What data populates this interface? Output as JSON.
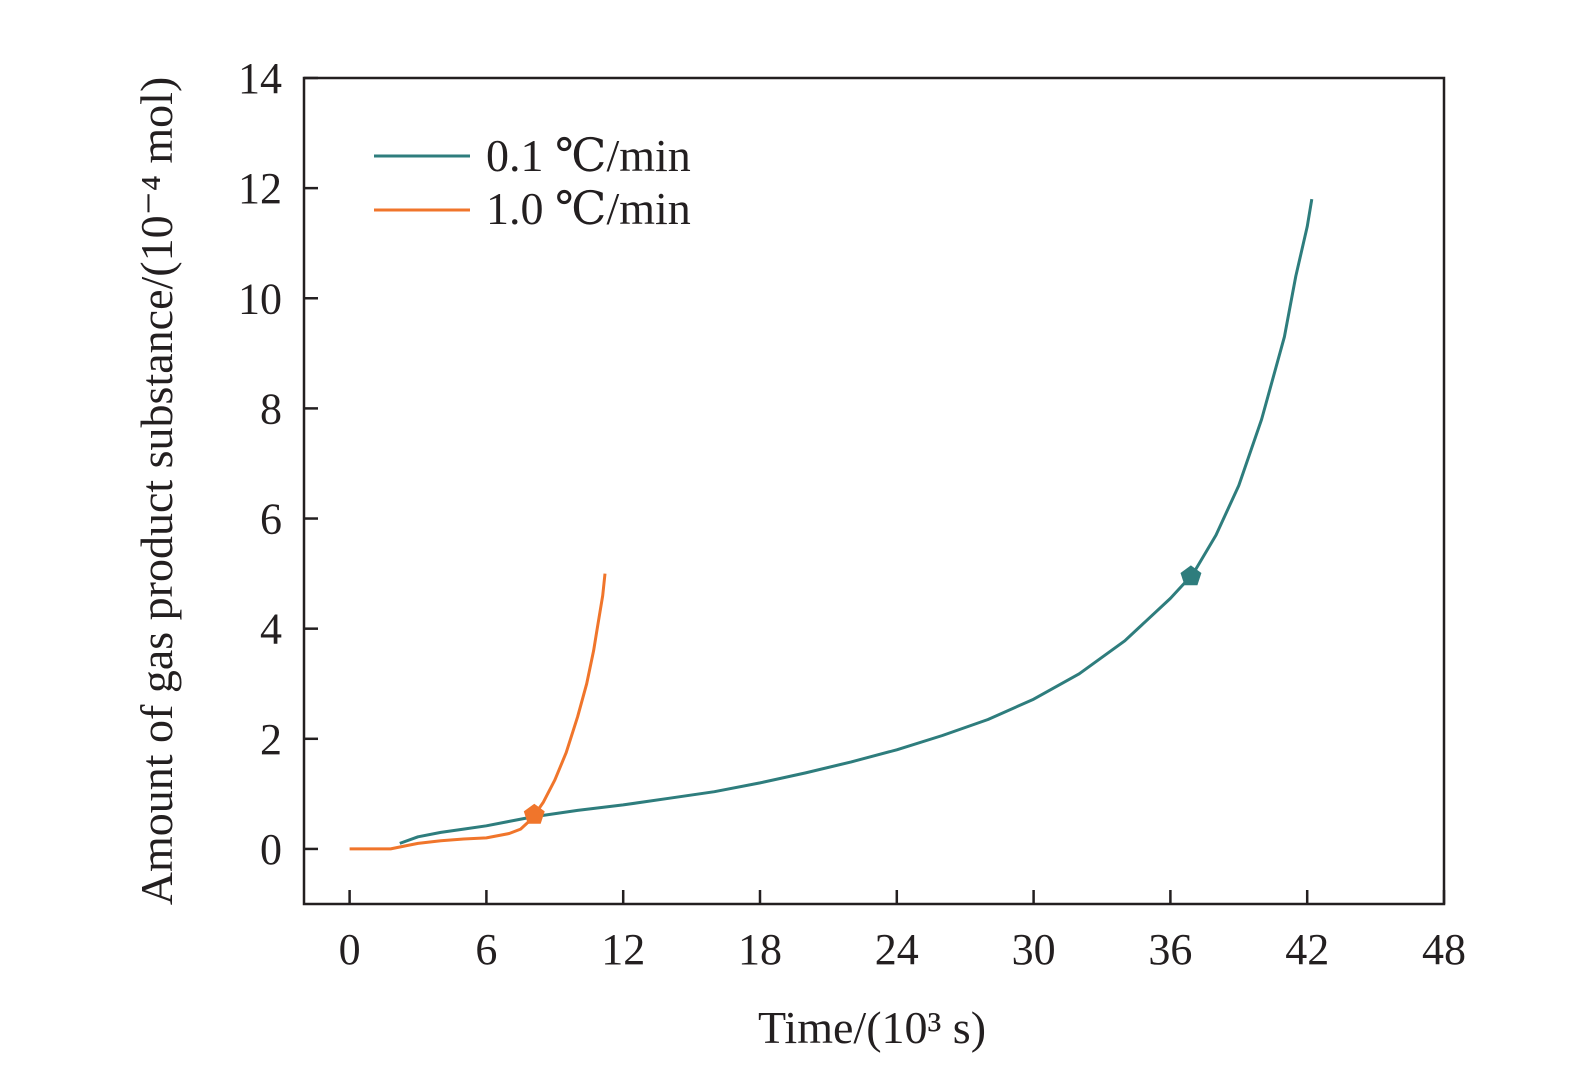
{
  "chart_data": {
    "type": "line",
    "xlabel": "Time/(10³ s)",
    "ylabel": "Amount of gas product substance/(10⁻⁴ mol)",
    "xlim": [
      -2,
      48
    ],
    "ylim": [
      -1,
      14
    ],
    "x_ticks": [
      "0",
      "6",
      "12",
      "18",
      "24",
      "30",
      "36",
      "42",
      "48"
    ],
    "y_ticks": [
      "0",
      "2",
      "4",
      "6",
      "8",
      "10",
      "12",
      "14"
    ],
    "x_tick_values": [
      0,
      6,
      12,
      18,
      24,
      30,
      36,
      42,
      48
    ],
    "y_tick_values": [
      0,
      2,
      4,
      6,
      8,
      10,
      12,
      14
    ],
    "grid": false,
    "legend_position": "top-left",
    "series": [
      {
        "name": "0.1 ℃/min",
        "color": "#2e7d7d",
        "x": [
          2.2,
          3,
          4,
          5,
          6,
          7,
          8,
          10,
          12,
          14,
          16,
          18,
          20,
          22,
          24,
          26,
          28,
          30,
          32,
          34,
          36,
          37,
          38,
          39,
          40,
          41,
          41.5,
          42,
          42.2
        ],
        "y": [
          0.1,
          0.22,
          0.3,
          0.36,
          0.42,
          0.5,
          0.58,
          0.7,
          0.8,
          0.92,
          1.04,
          1.2,
          1.38,
          1.58,
          1.8,
          2.06,
          2.35,
          2.72,
          3.18,
          3.78,
          4.55,
          5.0,
          5.7,
          6.6,
          7.8,
          9.3,
          10.4,
          11.3,
          11.8
        ]
      },
      {
        "name": "1.0 ℃/min",
        "color": "#f0752b",
        "x": [
          0,
          1,
          1.8,
          2.5,
          3,
          4,
          5,
          6,
          7,
          7.5,
          8,
          8.5,
          9,
          9.5,
          10,
          10.4,
          10.7,
          10.9,
          11.1,
          11.2
        ],
        "y": [
          0,
          0,
          0,
          0.06,
          0.1,
          0.15,
          0.18,
          0.2,
          0.28,
          0.36,
          0.55,
          0.85,
          1.25,
          1.75,
          2.4,
          3.0,
          3.6,
          4.1,
          4.6,
          5.0
        ]
      }
    ],
    "markers": [
      {
        "series": "0.1 ℃/min",
        "shape": "pentagon",
        "color": "#2e7d7d",
        "x": 36.9,
        "y": 4.95
      },
      {
        "series": "1.0 ℃/min",
        "shape": "pentagon",
        "color": "#f0752b",
        "x": 8.1,
        "y": 0.62
      }
    ]
  }
}
